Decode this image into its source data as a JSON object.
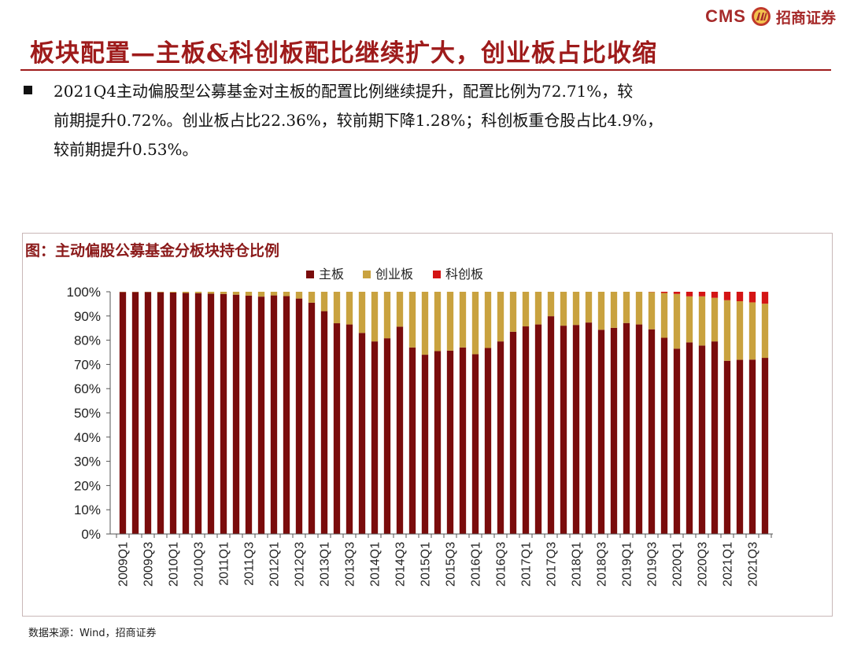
{
  "header": {
    "logo_latin": "CMS",
    "logo_chinese": "招商证券",
    "title": "板块配置—主板&科创板配比继续扩大，创业板占比收缩"
  },
  "summary": {
    "lines": [
      "2021Q4主动偏股型公募基金对主板的配置比例继续提升，配置比例为72.71%，较",
      "前期提升0.72%。创业板占比22.36%，较前期下降1.28%；科创板重仓股占比4.9%，",
      "较前期提升0.53%。"
    ]
  },
  "figure": {
    "caption": "图：主动偏股公募基金分板块持仓比例",
    "source": "数据来源：Wind，招商证券"
  },
  "colors": {
    "accent": "#9e1b1b",
    "main_board": "#7a0c0c",
    "chinext": "#c9a23f",
    "star": "#d41414"
  },
  "chart_data": {
    "type": "bar",
    "stacked": true,
    "title": "图：主动偏股公募基金分板块持仓比例",
    "xlabel": "",
    "ylabel": "",
    "ylim": [
      0,
      100
    ],
    "yticks": [
      "0%",
      "10%",
      "20%",
      "30%",
      "40%",
      "50%",
      "60%",
      "70%",
      "80%",
      "90%",
      "100%"
    ],
    "legend_position": "top-center",
    "categories": [
      "2009Q1",
      "2009Q2",
      "2009Q3",
      "2009Q4",
      "2010Q1",
      "2010Q2",
      "2010Q3",
      "2010Q4",
      "2011Q1",
      "2011Q2",
      "2011Q3",
      "2011Q4",
      "2012Q1",
      "2012Q2",
      "2012Q3",
      "2012Q4",
      "2013Q1",
      "2013Q2",
      "2013Q3",
      "2013Q4",
      "2014Q1",
      "2014Q2",
      "2014Q3",
      "2014Q4",
      "2015Q1",
      "2015Q2",
      "2015Q3",
      "2015Q4",
      "2016Q1",
      "2016Q2",
      "2016Q3",
      "2016Q4",
      "2017Q1",
      "2017Q2",
      "2017Q3",
      "2017Q4",
      "2018Q1",
      "2018Q2",
      "2018Q3",
      "2018Q4",
      "2019Q1",
      "2019Q2",
      "2019Q3",
      "2019Q4",
      "2020Q1",
      "2020Q2",
      "2020Q3",
      "2020Q4",
      "2021Q1",
      "2021Q2",
      "2021Q3",
      "2021Q4"
    ],
    "series": [
      {
        "name": "主板",
        "values": [
          99.9,
          99.9,
          99.9,
          99.8,
          99.7,
          99.5,
          99.4,
          99.2,
          99.1,
          98.8,
          98.4,
          98.0,
          98.5,
          98.2,
          97.2,
          95.5,
          92.0,
          87.0,
          86.5,
          83.0,
          79.5,
          80.8,
          85.6,
          77.0,
          74.0,
          75.5,
          75.7,
          77.0,
          74.2,
          76.8,
          79.5,
          83.5,
          85.7,
          86.5,
          89.9,
          86.0,
          86.3,
          87.3,
          84.3,
          85.1,
          87.1,
          86.5,
          84.5,
          81.0,
          76.5,
          79.1,
          77.8,
          79.5,
          71.5,
          71.9,
          71.99,
          72.71
        ]
      },
      {
        "name": "创业板",
        "values": [
          0.1,
          0.1,
          0.1,
          0.2,
          0.3,
          0.5,
          0.6,
          0.8,
          0.9,
          1.2,
          1.6,
          2.0,
          1.5,
          1.8,
          2.8,
          4.5,
          8.0,
          13.0,
          13.5,
          17.0,
          20.5,
          19.2,
          14.4,
          23.0,
          26.0,
          24.5,
          24.3,
          23.0,
          25.8,
          23.2,
          20.5,
          16.5,
          14.3,
          13.5,
          10.1,
          14.0,
          13.7,
          12.7,
          15.7,
          14.9,
          12.9,
          13.5,
          15.4,
          18.5,
          22.6,
          19.0,
          20.3,
          18.0,
          25.0,
          24.2,
          23.64,
          22.36
        ]
      },
      {
        "name": "科创板",
        "values": [
          0,
          0,
          0,
          0,
          0,
          0,
          0,
          0,
          0,
          0,
          0,
          0,
          0,
          0,
          0,
          0,
          0,
          0,
          0,
          0,
          0,
          0,
          0,
          0,
          0,
          0,
          0,
          0,
          0,
          0,
          0,
          0,
          0,
          0,
          0,
          0,
          0,
          0,
          0,
          0,
          0,
          0,
          0.1,
          0.5,
          0.9,
          1.9,
          1.9,
          2.5,
          3.5,
          3.9,
          4.37,
          4.9
        ]
      }
    ]
  }
}
